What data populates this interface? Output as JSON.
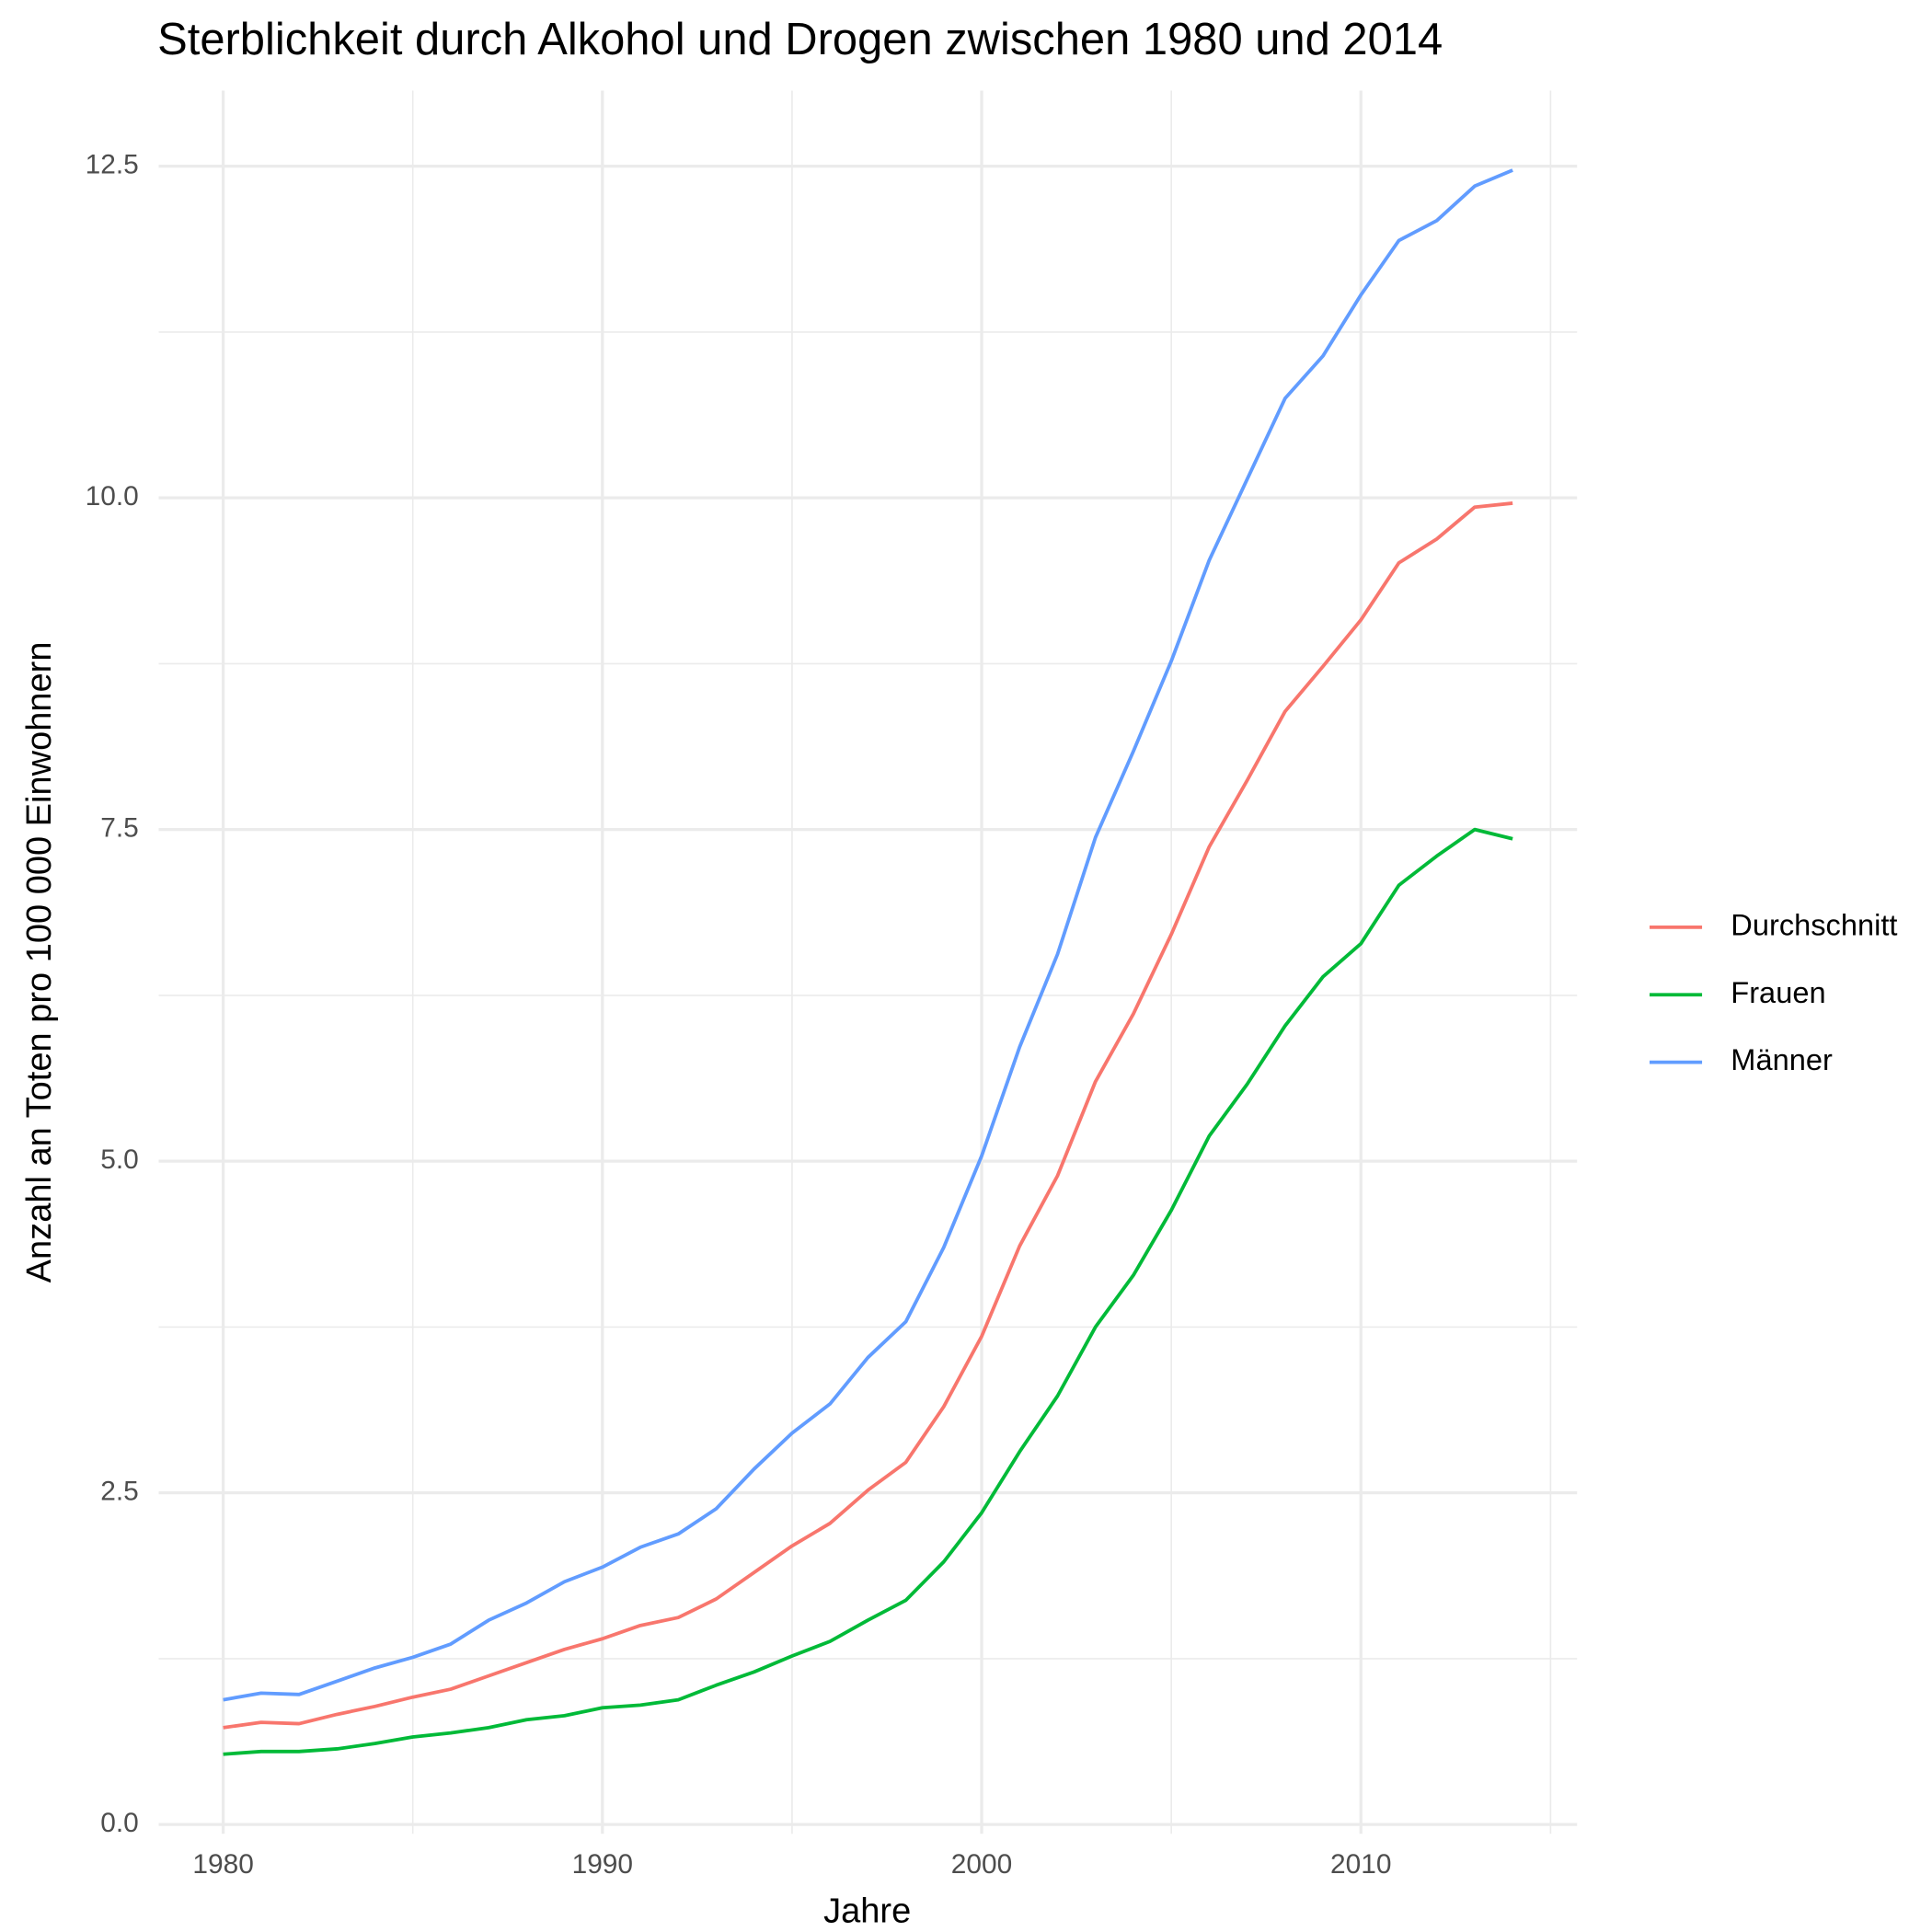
{
  "chart_data": {
    "type": "line",
    "title": "Sterblichkeit durch Alkohol und Drogen zwischen 1980 und 2014",
    "x_label": "Jahre",
    "y_label": "Anzahl an Toten pro 100 000 Einwohnern",
    "x": [
      1980,
      1981,
      1982,
      1983,
      1984,
      1985,
      1986,
      1987,
      1988,
      1989,
      1990,
      1991,
      1992,
      1993,
      1994,
      1995,
      1996,
      1997,
      1998,
      1999,
      2000,
      2001,
      2002,
      2003,
      2004,
      2005,
      2006,
      2007,
      2008,
      2009,
      2010,
      2011,
      2012,
      2013,
      2014
    ],
    "series": [
      {
        "name": "Durchschnitt",
        "color": "#f8766d",
        "values": [
          0.73,
          0.77,
          0.76,
          0.83,
          0.89,
          0.96,
          1.02,
          1.12,
          1.22,
          1.32,
          1.4,
          1.5,
          1.56,
          1.7,
          1.9,
          2.1,
          2.27,
          2.52,
          2.73,
          3.15,
          3.68,
          4.36,
          4.89,
          5.6,
          6.11,
          6.71,
          7.37,
          7.87,
          8.39,
          8.73,
          9.08,
          9.51,
          9.69,
          9.93,
          9.96
        ]
      },
      {
        "name": "Frauen",
        "color": "#00ba38",
        "values": [
          0.53,
          0.55,
          0.55,
          0.57,
          0.61,
          0.66,
          0.69,
          0.73,
          0.79,
          0.82,
          0.88,
          0.9,
          0.94,
          1.05,
          1.15,
          1.27,
          1.38,
          1.54,
          1.69,
          1.98,
          2.35,
          2.81,
          3.23,
          3.75,
          4.14,
          4.63,
          5.19,
          5.58,
          6.02,
          6.39,
          6.64,
          7.08,
          7.3,
          7.5,
          7.43
        ]
      },
      {
        "name": "Männer",
        "color": "#619cff",
        "values": [
          0.94,
          0.99,
          0.98,
          1.08,
          1.18,
          1.26,
          1.36,
          1.54,
          1.67,
          1.83,
          1.94,
          2.09,
          2.19,
          2.38,
          2.68,
          2.95,
          3.17,
          3.52,
          3.79,
          4.35,
          5.04,
          5.86,
          6.56,
          7.44,
          8.09,
          8.77,
          9.53,
          10.14,
          10.75,
          11.07,
          11.53,
          11.94,
          12.09,
          12.35,
          12.47
        ]
      }
    ],
    "xlim": [
      1978.3,
      2015.7
    ],
    "xticks": [
      1980,
      1990,
      2000,
      2010
    ],
    "ylim": [
      -0.07,
      13.07
    ],
    "yticks": [
      {
        "value": 0,
        "label": "0.0"
      },
      2.5,
      {
        "value": 5,
        "label": "5.0"
      },
      7.5,
      {
        "value": 10,
        "label": "10.0"
      },
      12.5
    ],
    "grid": true,
    "legend": "right"
  }
}
